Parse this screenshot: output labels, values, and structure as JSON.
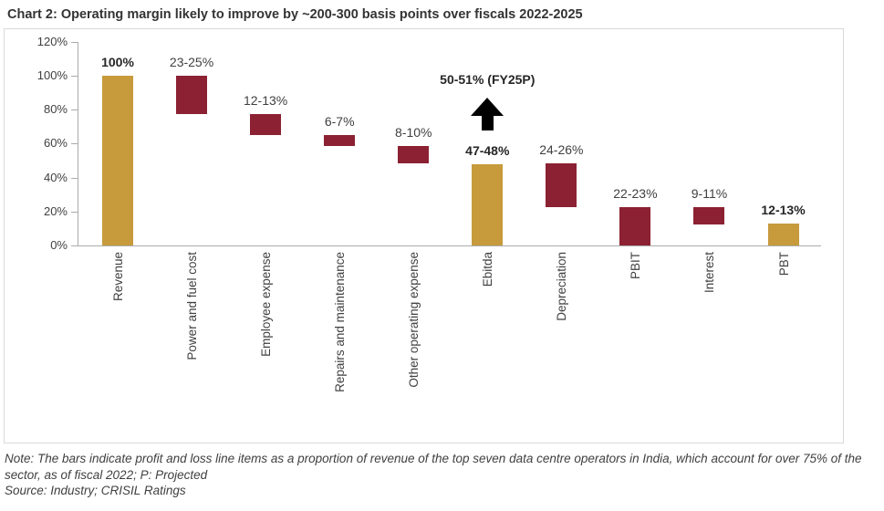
{
  "title": "Chart 2: Operating margin likely to improve by ~200-300 basis points over fiscals 2022-2025",
  "footer": {
    "note": "Note: The bars indicate profit and loss line items as a proportion of revenue of the top seven data centre operators in India, which account for over 75% of the sector, as of fiscal 2022; P: Projected",
    "source": "Source: Industry; CRISIL Ratings"
  },
  "colors": {
    "gold": "#C79A3C",
    "maroon": "#8B2132",
    "axis_line": "#ABABAB",
    "panel_border": "#D9D9D9",
    "text": "#404040",
    "text_strong": "#262626",
    "annotation_arrow": "#000000"
  },
  "chart_data": {
    "type": "bar",
    "subtype": "waterfall",
    "title": "Chart 2: Operating margin likely to improve by ~200-300 basis points over fiscals 2022-2025",
    "xlabel": "",
    "ylabel": "",
    "ylim": [
      0,
      120
    ],
    "ytick_labels": [
      "0%",
      "20%",
      "40%",
      "60%",
      "80%",
      "100%",
      "120%"
    ],
    "grid": false,
    "legend": false,
    "categories": [
      "Revenue",
      "Power and fuel cost",
      "Employee expense",
      "Repairs and maintenance",
      "Other operating expense",
      "Ebitda",
      "Depreciation",
      "PBIT",
      "Interest",
      "PBT"
    ],
    "bars": [
      {
        "category": "Revenue",
        "label": "100%",
        "from": 0,
        "to": 100,
        "color": "gold",
        "bold": true
      },
      {
        "category": "Power and fuel cost",
        "label": "23-25%",
        "from": 77.5,
        "to": 100,
        "color": "maroon",
        "bold": false
      },
      {
        "category": "Employee expense",
        "label": "12-13%",
        "from": 65,
        "to": 77.5,
        "color": "maroon",
        "bold": false
      },
      {
        "category": "Repairs and maintenance",
        "label": "6-7%",
        "from": 58.5,
        "to": 65,
        "color": "maroon",
        "bold": false
      },
      {
        "category": "Other operating expense",
        "label": "8-10%",
        "from": 48.5,
        "to": 58.5,
        "color": "maroon",
        "bold": false
      },
      {
        "category": "Ebitda",
        "label": "47-48%",
        "from": 0,
        "to": 48,
        "color": "gold",
        "bold": true
      },
      {
        "category": "Depreciation",
        "label": "24-26%",
        "from": 22.5,
        "to": 48.5,
        "color": "maroon",
        "bold": false
      },
      {
        "category": "PBIT",
        "label": "22-23%",
        "from": 0,
        "to": 22.5,
        "color": "maroon",
        "bold": false
      },
      {
        "category": "Interest",
        "label": "9-11%",
        "from": 12.5,
        "to": 22.5,
        "color": "maroon",
        "bold": false
      },
      {
        "category": "PBT",
        "label": "12-13%",
        "from": 0,
        "to": 13,
        "color": "gold",
        "bold": true
      }
    ],
    "annotation": {
      "text": "50-51% (FY25P)",
      "target_category": "Ebitda",
      "symbol": "up-arrow"
    }
  }
}
